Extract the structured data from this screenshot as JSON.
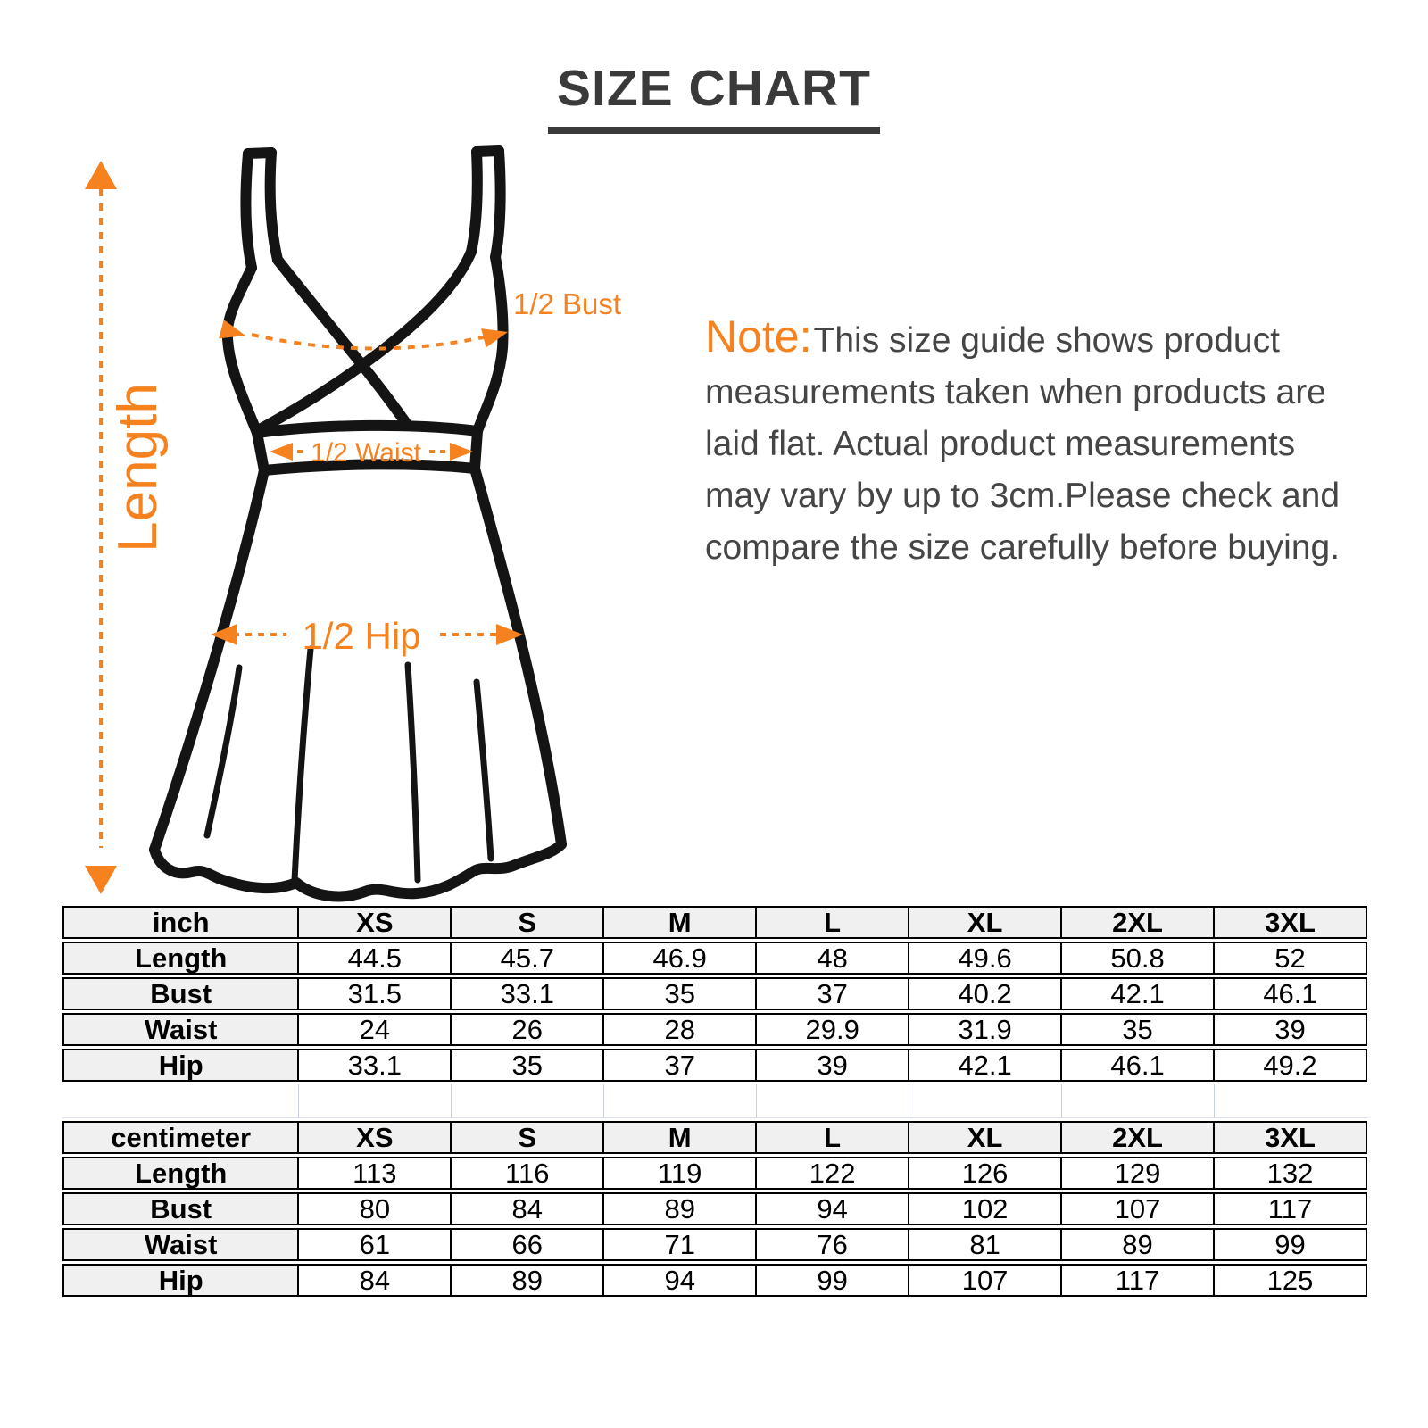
{
  "title": "SIZE CHART",
  "diagram": {
    "length_label": "Length",
    "bust_label": "1/2 Bust",
    "waist_label": "1/2 Waist",
    "hip_label": "1/2 Hip"
  },
  "note": {
    "prefix": "Note:",
    "lines": [
      "This size guide shows product",
      "measurements taken when products are",
      "laid flat. Actual product measurements",
      "may vary by up to 3cm.Please check and",
      "compare the size carefully before buying."
    ]
  },
  "tables": [
    {
      "unit": "inch",
      "sizes": [
        "XS",
        "S",
        "M",
        "L",
        "XL",
        "2XL",
        "3XL"
      ],
      "rows": [
        {
          "label": "Length",
          "values": [
            "44.5",
            "45.7",
            "46.9",
            "48",
            "49.6",
            "50.8",
            "52"
          ]
        },
        {
          "label": "Bust",
          "values": [
            "31.5",
            "33.1",
            "35",
            "37",
            "40.2",
            "42.1",
            "46.1"
          ]
        },
        {
          "label": "Waist",
          "values": [
            "24",
            "26",
            "28",
            "29.9",
            "31.9",
            "35",
            "39"
          ]
        },
        {
          "label": "Hip",
          "values": [
            "33.1",
            "35",
            "37",
            "39",
            "42.1",
            "46.1",
            "49.2"
          ]
        }
      ]
    },
    {
      "unit": "centimeter",
      "sizes": [
        "XS",
        "S",
        "M",
        "L",
        "XL",
        "2XL",
        "3XL"
      ],
      "rows": [
        {
          "label": "Length",
          "values": [
            "113",
            "116",
            "119",
            "122",
            "126",
            "129",
            "132"
          ]
        },
        {
          "label": "Bust",
          "values": [
            "80",
            "84",
            "89",
            "94",
            "102",
            "107",
            "117"
          ]
        },
        {
          "label": "Waist",
          "values": [
            "61",
            "66",
            "71",
            "76",
            "81",
            "89",
            "99"
          ]
        },
        {
          "label": "Hip",
          "values": [
            "84",
            "89",
            "94",
            "99",
            "107",
            "117",
            "125"
          ]
        }
      ]
    }
  ],
  "colors": {
    "accent": "#F6821F",
    "heading_text": "#3A3A3A",
    "note_text": "#454545",
    "table_border": "#000000",
    "table_header_bg": "#F0F0F0",
    "gap_gridline": "#C9CFE4"
  }
}
